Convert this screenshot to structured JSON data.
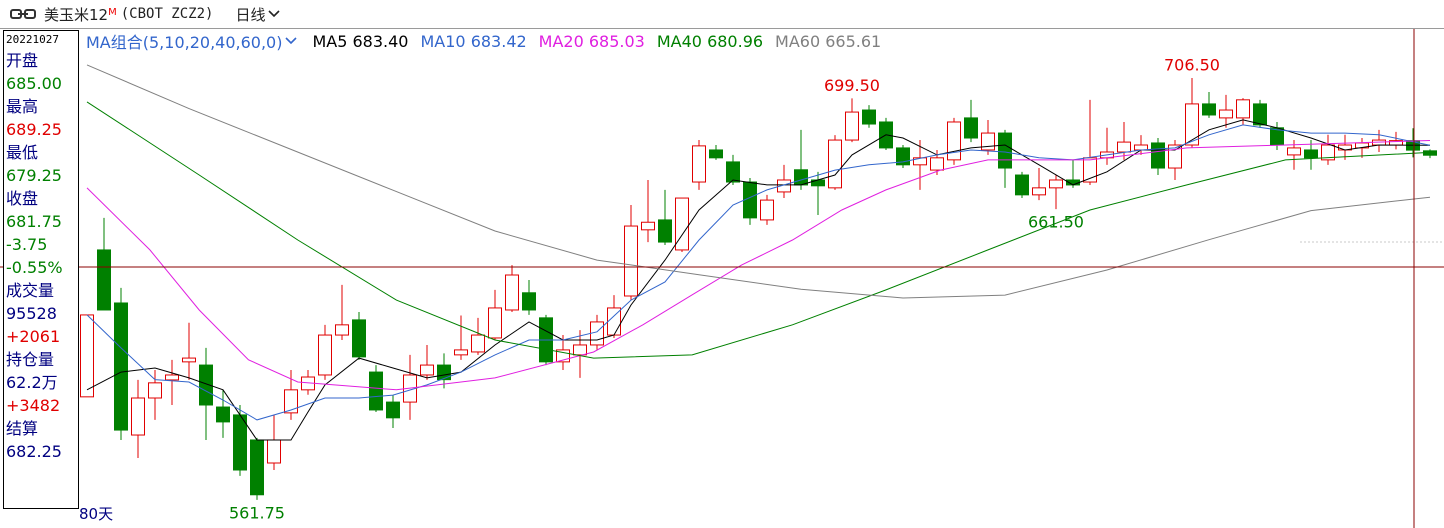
{
  "header": {
    "symbol": "美玉米12",
    "flag": "M",
    "code": "(CBOT ZCZ2)",
    "period": "日线"
  },
  "panel": {
    "date": "20221027",
    "rows": [
      {
        "text": "开盘",
        "color": "#000080"
      },
      {
        "text": "685.00",
        "color": "#008000"
      },
      {
        "text": "最高",
        "color": "#000080"
      },
      {
        "text": "689.25",
        "color": "#e00000"
      },
      {
        "text": "最低",
        "color": "#000080"
      },
      {
        "text": "679.25",
        "color": "#008000"
      },
      {
        "text": "收盘",
        "color": "#000080"
      },
      {
        "text": "681.75",
        "color": "#008000"
      },
      {
        "text": "-3.75",
        "color": "#008000"
      },
      {
        "text": "-0.55%",
        "color": "#008000"
      },
      {
        "text": "成交量",
        "color": "#000080"
      },
      {
        "text": "95528",
        "color": "#000080"
      },
      {
        "text": "+2061",
        "color": "#e00000"
      },
      {
        "text": "持仓量",
        "color": "#000080"
      },
      {
        "text": "62.2万",
        "color": "#000080"
      },
      {
        "text": "+3482",
        "color": "#e00000"
      },
      {
        "text": "结算",
        "color": "#000080"
      },
      {
        "text": "682.25",
        "color": "#000080"
      }
    ]
  },
  "chart_data": {
    "type": "candlestick",
    "window_label": "80天",
    "ma_group": "MA组合(5,10,20,40,60,0)",
    "ma_group_color": "#3366cc",
    "up_color": "#e00000",
    "down_color": "#008000",
    "ylim": [
      552.1,
      723.3
    ],
    "open": [
      597.1,
      647.5,
      629.3,
      584,
      596.7,
      602.9,
      609.1,
      608,
      593.6,
      590.9,
      582.3,
      574.4,
      591.6,
      599.5,
      604.6,
      618.3,
      623.5,
      605.6,
      595.3,
      595.3,
      604.6,
      608,
      611.5,
      612.5,
      617.3,
      626.9,
      632.8,
      624.2,
      609.1,
      611.5,
      614.9,
      618.3,
      631.7,
      654.4,
      657.8,
      647.5,
      670.8,
      681.8,
      677.7,
      670.8,
      657.8,
      667.4,
      675,
      671.5,
      668.8,
      685.2,
      695.5,
      691.4,
      682.5,
      676.7,
      674.9,
      678.4,
      692.8,
      681.8,
      687.6,
      673.2,
      666.4,
      668.8,
      671.5,
      670.8,
      679.1,
      681.1,
      681.8,
      684.2,
      675.6,
      683.5,
      697.6,
      692.8,
      692.8,
      697.6,
      689.4,
      680.1,
      681.8,
      678.4,
      681.8,
      682.5,
      683.5,
      683.5,
      685,
      681.5
    ],
    "high": [
      625.2,
      658.5,
      634.5,
      602.9,
      606.3,
      609.8,
      622.5,
      613.9,
      599.5,
      594.3,
      583,
      590.9,
      606.3,
      606.3,
      621.8,
      635.5,
      626.2,
      608,
      597.7,
      611.5,
      614.9,
      612,
      625,
      624.2,
      633.8,
      642.3,
      637.2,
      625.2,
      618.3,
      620,
      625.2,
      632,
      662.9,
      671.5,
      668.1,
      665.3,
      685.2,
      683.5,
      680.1,
      672.2,
      666.4,
      676.7,
      688.7,
      674.3,
      686.9,
      699.5,
      697.2,
      692.8,
      683.5,
      685.2,
      681.8,
      692.8,
      699,
      692.1,
      688.7,
      674.3,
      675.6,
      673.2,
      678.4,
      699,
      689.4,
      691.4,
      686.9,
      685.9,
      685.2,
      706.5,
      701.7,
      700.7,
      699.6,
      699,
      691.4,
      685.2,
      685.2,
      687,
      687,
      685.9,
      688.7,
      688,
      689.25,
      682
    ],
    "low": [
      597.1,
      626.9,
      582.3,
      576.1,
      589.2,
      594.3,
      602.9,
      582.3,
      583,
      570,
      561.75,
      572,
      589.2,
      597.8,
      602.9,
      616.6,
      609.8,
      591.9,
      586.4,
      589.2,
      602.9,
      600,
      609.8,
      611.5,
      616.6,
      626.2,
      625.2,
      608,
      606.3,
      603.6,
      613.2,
      617.3,
      630.3,
      650.2,
      649.2,
      646.8,
      668.1,
      678.4,
      669.8,
      656.1,
      656.1,
      665.3,
      668.1,
      659.5,
      668.1,
      684.5,
      689.4,
      681.8,
      675.6,
      668.1,
      673.2,
      676.7,
      684.5,
      680.1,
      668.8,
      665.3,
      664.6,
      661.5,
      668.8,
      669.8,
      676.7,
      678.4,
      680.1,
      673.2,
      671.5,
      682.5,
      692.8,
      689.4,
      690.4,
      689.4,
      681.8,
      675,
      675,
      676.7,
      678.4,
      679.1,
      681.1,
      682,
      679.25,
      679
    ],
    "close": [
      625.2,
      626.9,
      585.7,
      596.7,
      601.9,
      604.6,
      610.4,
      594.3,
      588.5,
      572,
      563.5,
      582.3,
      599.5,
      603.9,
      618.3,
      621.8,
      610.8,
      592.6,
      589.9,
      604.6,
      608,
      603,
      613.2,
      618.3,
      627.6,
      638.9,
      626.9,
      609.1,
      613.2,
      614.9,
      622.8,
      627.6,
      655.7,
      657,
      650.2,
      665.3,
      683.2,
      679.1,
      670.8,
      658.5,
      664.6,
      671.5,
      669.8,
      669.5,
      685.2,
      694.8,
      690.7,
      682.5,
      676.7,
      679.1,
      679.1,
      691.4,
      685.9,
      687.6,
      675.6,
      666.4,
      668.8,
      671.5,
      669.8,
      679.1,
      681.1,
      684.5,
      683.5,
      675.6,
      683.5,
      697.6,
      693.8,
      695.5,
      699,
      690.4,
      683.5,
      682.5,
      679.1,
      683.5,
      683.5,
      684.2,
      685.2,
      685,
      681.75,
      680
    ],
    "annotations": [
      {
        "label": "699.50",
        "value": 699.5,
        "color": "#e00000"
      },
      {
        "label": "706.50",
        "value": 706.5,
        "color": "#e00000"
      },
      {
        "label": "661.50",
        "value": 661.5,
        "color": "#008000"
      },
      {
        "label": "561.75",
        "value": 561.75,
        "color": "#008000"
      }
    ],
    "series": [
      {
        "name": "MA5",
        "legend_value": "683.40",
        "color": "#000000",
        "x": [
          0,
          2,
          4,
          6,
          8,
          10,
          12,
          13,
          14,
          16,
          18,
          20,
          22,
          24,
          26,
          28,
          30,
          31,
          32,
          34,
          36,
          38,
          40,
          42,
          44,
          45,
          47,
          48,
          50,
          52,
          54,
          56,
          58,
          60,
          62,
          64,
          66,
          68,
          70,
          72,
          74,
          76,
          79
        ],
        "values": [
          599.5,
          605.6,
          607,
          603.6,
          599.5,
          582.3,
          582.3,
          591.9,
          601.2,
          610.4,
          607,
          603.6,
          605.6,
          614.9,
          622.8,
          616.6,
          616.6,
          618.3,
          628.6,
          644,
          661.2,
          671.5,
          669.8,
          669.8,
          673.2,
          680.1,
          687,
          685.9,
          680.1,
          682.5,
          683.5,
          676.7,
          669.8,
          674.3,
          681.8,
          681.8,
          688.7,
          692.1,
          689.4,
          685.9,
          681.8,
          683.5,
          683.4
        ]
      },
      {
        "name": "MA10",
        "legend_value": "683.42",
        "color": "#3366cc",
        "x": [
          0,
          2,
          4,
          6,
          8,
          10,
          12,
          14,
          16,
          18,
          20,
          22,
          24,
          26,
          28,
          30,
          32,
          34,
          36,
          38,
          40,
          42,
          44,
          46,
          48,
          50,
          52,
          54,
          56,
          58,
          60,
          62,
          64,
          66,
          68,
          70,
          72,
          74,
          76,
          79
        ],
        "values": [
          625.2,
          613.9,
          603,
          602.2,
          596,
          589.2,
          592.6,
          596.7,
          596.7,
          597.7,
          601.2,
          605.6,
          611.5,
          616.6,
          616.6,
          619.4,
          630.3,
          636.5,
          650.9,
          662.9,
          668.1,
          671.5,
          674.9,
          676.7,
          677.7,
          680.1,
          681.8,
          681.1,
          679.1,
          678.4,
          680.1,
          681.8,
          682.5,
          687,
          690.4,
          688.7,
          687.6,
          687.6,
          687,
          683.42
        ]
      },
      {
        "name": "MA20",
        "legend_value": "685.03",
        "color": "#e020e0",
        "x": [
          0,
          3.7,
          6.6,
          9.5,
          12.4,
          18.2,
          24,
          29.8,
          32.7,
          35.6,
          38.5,
          41.5,
          44.4,
          47,
          50.2,
          53,
          59,
          64.7,
          70.5,
          79
        ],
        "values": [
          668.8,
          647.5,
          626.9,
          609.8,
          602.2,
          599.5,
          603.6,
          612.5,
          621.8,
          632.1,
          642.3,
          650.9,
          661.2,
          668.1,
          674.9,
          678.4,
          678.4,
          682.5,
          683.5,
          685.03
        ]
      },
      {
        "name": "MA40",
        "legend_value": "680.96",
        "color": "#008000",
        "x": [
          0,
          6.6,
          12.4,
          18.2,
          24,
          29.8,
          35.6,
          41.5,
          47,
          53,
          59,
          64.7,
          70.5,
          79
        ],
        "values": [
          698.3,
          673.2,
          650.9,
          630.3,
          616.6,
          610.4,
          611.5,
          621.8,
          633.8,
          647.5,
          661.2,
          669.8,
          678.4,
          680.96
        ]
      },
      {
        "name": "MA60",
        "legend_value": "665.61",
        "color": "#808080",
        "x": [
          0,
          6,
          12,
          18,
          24,
          30,
          36,
          42,
          48,
          54,
          60,
          66,
          72,
          79
        ],
        "values": [
          711,
          696,
          682,
          668,
          654,
          644,
          639,
          634,
          631,
          632,
          640.6,
          651,
          661,
          665.61
        ]
      }
    ]
  }
}
